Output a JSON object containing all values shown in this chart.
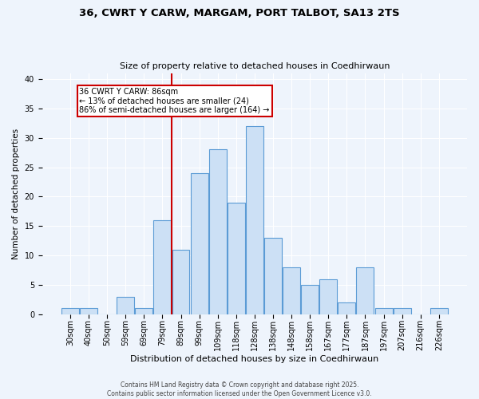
{
  "title_line1": "36, CWRT Y CARW, MARGAM, PORT TALBOT, SA13 2TS",
  "title_line2": "Size of property relative to detached houses in Coedhirwaun",
  "xlabel": "Distribution of detached houses by size in Coedhirwaun",
  "ylabel": "Number of detached properties",
  "bar_labels": [
    "30sqm",
    "40sqm",
    "50sqm",
    "59sqm",
    "69sqm",
    "79sqm",
    "89sqm",
    "99sqm",
    "109sqm",
    "118sqm",
    "128sqm",
    "138sqm",
    "148sqm",
    "158sqm",
    "167sqm",
    "177sqm",
    "187sqm",
    "197sqm",
    "207sqm",
    "216sqm",
    "226sqm"
  ],
  "bar_values": [
    1,
    1,
    0,
    3,
    1,
    16,
    11,
    24,
    28,
    19,
    32,
    13,
    8,
    5,
    6,
    2,
    8,
    1,
    1,
    0,
    1
  ],
  "bar_color": "#cce0f5",
  "bar_edge_color": "#5b9bd5",
  "vline_color": "#cc0000",
  "annotation_text": "36 CWRT Y CARW: 86sqm\n← 13% of detached houses are smaller (24)\n86% of semi-detached houses are larger (164) →",
  "annotation_box_color": "#ffffff",
  "annotation_box_edge": "#cc0000",
  "ylim": [
    0,
    41
  ],
  "yticks": [
    0,
    5,
    10,
    15,
    20,
    25,
    30,
    35,
    40
  ],
  "footer_line1": "Contains HM Land Registry data © Crown copyright and database right 2025.",
  "footer_line2": "Contains public sector information licensed under the Open Government Licence v3.0.",
  "bg_color": "#eef4fc",
  "plot_bg_color": "#eef4fc",
  "title_fontsize": 9.5,
  "subtitle_fontsize": 8,
  "xlabel_fontsize": 8,
  "ylabel_fontsize": 7.5,
  "tick_fontsize": 7,
  "annotation_fontsize": 7,
  "footer_fontsize": 5.5
}
